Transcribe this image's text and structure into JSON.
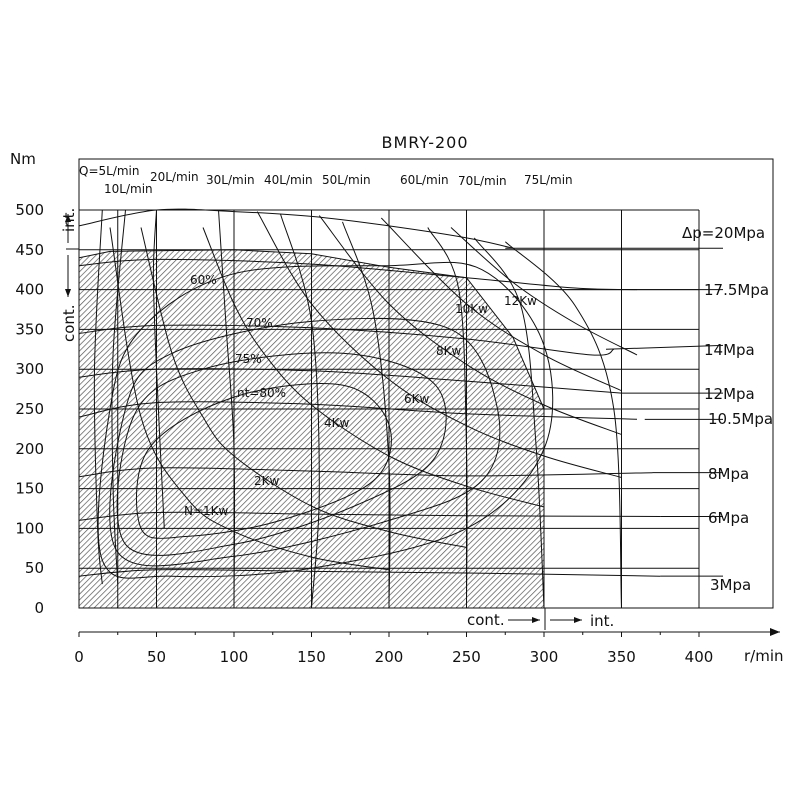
{
  "chart_data": {
    "type": "line",
    "title": "BMRY-200",
    "xlabel": "r/min",
    "ylabel": "Nm",
    "xlim": [
      0,
      400
    ],
    "ylim": [
      0,
      500
    ],
    "x_ticks": [
      "0",
      "50",
      "100",
      "150",
      "200",
      "250",
      "300",
      "350",
      "400"
    ],
    "y_ticks": [
      "0",
      "50",
      "100",
      "150",
      "200",
      "250",
      "300",
      "350",
      "400",
      "450",
      "500"
    ],
    "grid": true,
    "continuous_region": {
      "x_label": "cont.",
      "y_label": "cont.",
      "speed_limit": 300,
      "torque_limit": 450,
      "outline": [
        [
          0,
          0
        ],
        [
          0,
          440
        ],
        [
          20,
          448
        ],
        [
          100,
          450
        ],
        [
          150,
          445
        ],
        [
          200,
          428
        ],
        [
          250,
          415
        ],
        [
          280,
          340
        ],
        [
          300,
          250
        ],
        [
          300,
          0
        ]
      ]
    },
    "intermittent_region": {
      "x_label": "int.",
      "y_label": "int."
    },
    "pressure_lines": [
      {
        "name": "Δp=20Mpa",
        "points": [
          [
            0,
            480
          ],
          [
            50,
            500
          ],
          [
            100,
            498
          ],
          [
            150,
            492
          ],
          [
            200,
            480
          ],
          [
            250,
            465
          ],
          [
            280,
            452
          ]
        ]
      },
      {
        "name": "17.5Mpa",
        "points": [
          [
            0,
            430
          ],
          [
            50,
            438
          ],
          [
            150,
            432
          ],
          [
            250,
            415
          ],
          [
            320,
            402
          ],
          [
            360,
            400
          ]
        ]
      },
      {
        "name": "14Mpa",
        "points": [
          [
            0,
            345
          ],
          [
            50,
            355
          ],
          [
            150,
            352
          ],
          [
            250,
            338
          ],
          [
            330,
            318
          ],
          [
            345,
            325
          ]
        ]
      },
      {
        "name": "12Mpa",
        "points": [
          [
            0,
            290
          ],
          [
            50,
            300
          ],
          [
            150,
            298
          ],
          [
            250,
            285
          ],
          [
            350,
            270
          ]
        ]
      },
      {
        "name": "10.5Mpa",
        "points": [
          [
            0,
            240
          ],
          [
            50,
            258
          ],
          [
            150,
            256
          ],
          [
            250,
            244
          ],
          [
            360,
            237
          ]
        ]
      },
      {
        "name": "8Mpa",
        "points": [
          [
            0,
            165
          ],
          [
            50,
            176
          ],
          [
            150,
            172
          ],
          [
            250,
            166
          ],
          [
            370,
            170
          ]
        ]
      },
      {
        "name": "6Mpa",
        "points": [
          [
            0,
            110
          ],
          [
            50,
            120
          ],
          [
            150,
            118
          ],
          [
            250,
            116
          ],
          [
            375,
            115
          ]
        ]
      },
      {
        "name": "3Mpa",
        "points": [
          [
            0,
            40
          ],
          [
            50,
            48
          ],
          [
            150,
            46
          ],
          [
            250,
            44
          ],
          [
            375,
            40
          ]
        ]
      }
    ],
    "flow_lines": [
      {
        "name": "Q=5L/min",
        "points": [
          [
            15,
            500
          ],
          [
            10,
            300
          ],
          [
            12,
            100
          ],
          [
            15,
            30
          ]
        ]
      },
      {
        "name": "10L/min",
        "points": [
          [
            30,
            500
          ],
          [
            22,
            320
          ],
          [
            22,
            150
          ],
          [
            25,
            30
          ]
        ]
      },
      {
        "name": "20L/min",
        "points": [
          [
            50,
            500
          ],
          [
            48,
            420
          ],
          [
            50,
            300
          ],
          [
            55,
            100
          ]
        ]
      },
      {
        "name": "30L/min",
        "points": [
          [
            90,
            500
          ],
          [
            95,
            350
          ],
          [
            100,
            200
          ],
          [
            100,
            0
          ]
        ]
      },
      {
        "name": "40L/min",
        "points": [
          [
            130,
            495
          ],
          [
            150,
            360
          ],
          [
            155,
            150
          ],
          [
            150,
            0
          ]
        ]
      },
      {
        "name": "50L/min",
        "points": [
          [
            170,
            485
          ],
          [
            190,
            370
          ],
          [
            200,
            180
          ],
          [
            200,
            0
          ]
        ]
      },
      {
        "name": "60L/min",
        "points": [
          [
            225,
            478
          ],
          [
            245,
            400
          ],
          [
            250,
            200
          ],
          [
            250,
            0
          ]
        ]
      },
      {
        "name": "70L/min",
        "points": [
          [
            255,
            465
          ],
          [
            285,
            380
          ],
          [
            295,
            200
          ],
          [
            300,
            0
          ]
        ]
      },
      {
        "name": "75L/min",
        "points": [
          [
            275,
            460
          ],
          [
            320,
            380
          ],
          [
            345,
            250
          ],
          [
            350,
            0
          ]
        ]
      }
    ],
    "power_lines": [
      {
        "name": "N=1Kw",
        "points": [
          [
            20,
            478
          ],
          [
            40,
            240
          ],
          [
            70,
            137
          ],
          [
            100,
            96
          ],
          [
            150,
            64
          ],
          [
            200,
            48
          ]
        ]
      },
      {
        "name": "2Kw",
        "points": [
          [
            40,
            478
          ],
          [
            60,
            320
          ],
          [
            80,
            240
          ],
          [
            100,
            191
          ],
          [
            150,
            128
          ],
          [
            200,
            96
          ],
          [
            250,
            76
          ]
        ]
      },
      {
        "name": "4Kw",
        "points": [
          [
            80,
            478
          ],
          [
            100,
            382
          ],
          [
            120,
            318
          ],
          [
            150,
            255
          ],
          [
            200,
            191
          ],
          [
            250,
            153
          ],
          [
            300,
            127
          ]
        ]
      },
      {
        "name": "6Kw",
        "points": [
          [
            115,
            498
          ],
          [
            150,
            382
          ],
          [
            200,
            287
          ],
          [
            250,
            229
          ],
          [
            300,
            191
          ],
          [
            350,
            164
          ]
        ]
      },
      {
        "name": "8Kw",
        "points": [
          [
            155,
            493
          ],
          [
            200,
            382
          ],
          [
            250,
            306
          ],
          [
            300,
            255
          ],
          [
            350,
            218
          ]
        ]
      },
      {
        "name": "10Kw",
        "points": [
          [
            195,
            490
          ],
          [
            250,
            382
          ],
          [
            300,
            318
          ],
          [
            350,
            273
          ]
        ]
      },
      {
        "name": "12Kw",
        "points": [
          [
            240,
            478
          ],
          [
            280,
            409
          ],
          [
            320,
            358
          ],
          [
            360,
            318
          ]
        ]
      }
    ],
    "efficiency_contours": [
      {
        "name": "60%",
        "points": [
          [
            15,
            60
          ],
          [
            20,
            250
          ],
          [
            40,
            350
          ],
          [
            100,
            420
          ],
          [
            200,
            430
          ],
          [
            260,
            425
          ],
          [
            300,
            330
          ],
          [
            300,
            200
          ],
          [
            250,
            100
          ],
          [
            150,
            50
          ],
          [
            60,
            40
          ]
        ]
      },
      {
        "name": "70%",
        "points": [
          [
            25,
            70
          ],
          [
            30,
            250
          ],
          [
            60,
            320
          ],
          [
            150,
            360
          ],
          [
            240,
            350
          ],
          [
            270,
            250
          ],
          [
            260,
            160
          ],
          [
            200,
            110
          ],
          [
            100,
            65
          ]
        ]
      },
      {
        "name": "75%",
        "points": [
          [
            30,
            80
          ],
          [
            35,
            240
          ],
          [
            80,
            300
          ],
          [
            170,
            320
          ],
          [
            230,
            280
          ],
          [
            230,
            190
          ],
          [
            180,
            130
          ],
          [
            100,
            80
          ]
        ]
      },
      {
        "name": "nt=80%",
        "points": [
          [
            40,
            100
          ],
          [
            45,
            200
          ],
          [
            100,
            265
          ],
          [
            170,
            280
          ],
          [
            200,
            230
          ],
          [
            190,
            160
          ],
          [
            130,
            110
          ],
          [
            70,
            90
          ]
        ]
      }
    ],
    "labels": {
      "title": "BMRY-200",
      "y_axis_unit": "Nm",
      "x_axis_unit": "r/min",
      "cont": "cont.",
      "int": "int.",
      "flow": [
        "Q=5L/min",
        "10L/min",
        "20L/min",
        "30L/min",
        "40L/min",
        "50L/min",
        "60L/min",
        "70L/min",
        "75L/min"
      ],
      "pressure": [
        "Δp=20Mpa",
        "17.5Mpa",
        "14Mpa",
        "12Mpa",
        "10.5Mpa",
        "8Mpa",
        "6Mpa",
        "3Mpa"
      ],
      "power": [
        "N=1Kw",
        "2Kw",
        "4Kw",
        "6Kw",
        "8Kw",
        "10Kw",
        "12Kw"
      ],
      "efficiency": [
        "60%",
        "70%",
        "75%",
        "nt=80%"
      ]
    }
  }
}
